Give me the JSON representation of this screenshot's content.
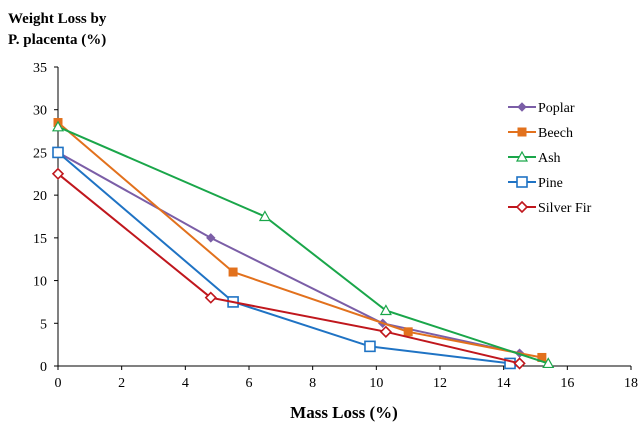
{
  "chart_data": {
    "type": "line",
    "ylabel_lines": [
      "Weight Loss by",
      "P. placenta (%)"
    ],
    "xlabel": "Mass Loss (%)",
    "xlim": [
      0,
      18
    ],
    "ylim": [
      0,
      35
    ],
    "x_ticks": [
      "0",
      "2",
      "4",
      "6",
      "8",
      "10",
      "12",
      "14",
      "16",
      "18"
    ],
    "y_ticks": [
      "0",
      "5",
      "10",
      "15",
      "20",
      "25",
      "30",
      "35"
    ],
    "grid": false,
    "legend_position": "top-right",
    "series": [
      {
        "name": "Poplar",
        "color": "#7b5ea7",
        "marker": "diamond-filled",
        "points": [
          [
            0,
            25
          ],
          [
            4.8,
            15
          ],
          [
            10.2,
            5
          ],
          [
            14.5,
            1.5
          ]
        ]
      },
      {
        "name": "Beech",
        "color": "#e2711d",
        "marker": "square-filled",
        "points": [
          [
            0,
            28.5
          ],
          [
            5.5,
            11
          ],
          [
            11,
            4
          ],
          [
            15.2,
            1
          ]
        ]
      },
      {
        "name": "Ash",
        "color": "#1aa64a",
        "marker": "triangle-open",
        "points": [
          [
            0,
            28
          ],
          [
            6.5,
            17.5
          ],
          [
            10.3,
            6.5
          ],
          [
            15.4,
            0.3
          ]
        ]
      },
      {
        "name": "Pine",
        "color": "#1f73c4",
        "marker": "square-open",
        "points": [
          [
            0,
            25
          ],
          [
            5.5,
            7.5
          ],
          [
            9.8,
            2.3
          ],
          [
            14.2,
            0.3
          ]
        ]
      },
      {
        "name": "Silver Fir",
        "color": "#c0171d",
        "marker": "diamond-open",
        "points": [
          [
            0,
            22.5
          ],
          [
            4.8,
            8
          ],
          [
            10.3,
            4
          ],
          [
            14.5,
            0.3
          ]
        ]
      }
    ]
  }
}
